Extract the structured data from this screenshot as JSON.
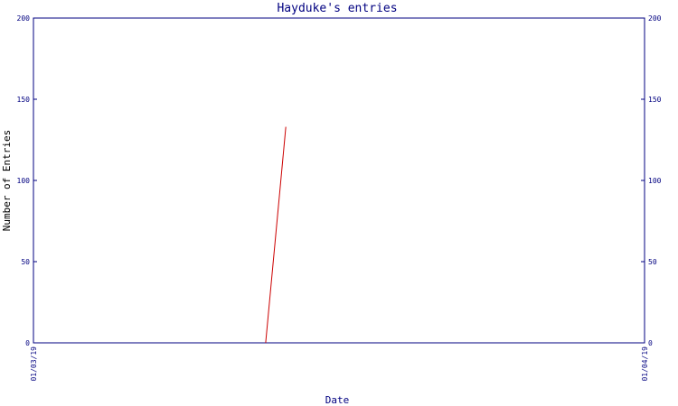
{
  "chart_data": {
    "type": "line",
    "title": "Hayduke's entries",
    "xlabel": "Date",
    "ylabel": "Number of Entries",
    "xlim": [
      "01/03/19",
      "01/04/19"
    ],
    "ylim": [
      0,
      200
    ],
    "y_ticks": [
      "0",
      "50",
      "100",
      "150",
      "200"
    ],
    "x_ticks": [
      "01/03/19",
      "01/04/19"
    ],
    "series": [
      {
        "color": "#cc0000",
        "points": [
          {
            "x": 0.38,
            "y": 0
          },
          {
            "x": 0.413,
            "y": 133
          }
        ]
      }
    ],
    "axis_color": "#000080",
    "grid": false
  }
}
